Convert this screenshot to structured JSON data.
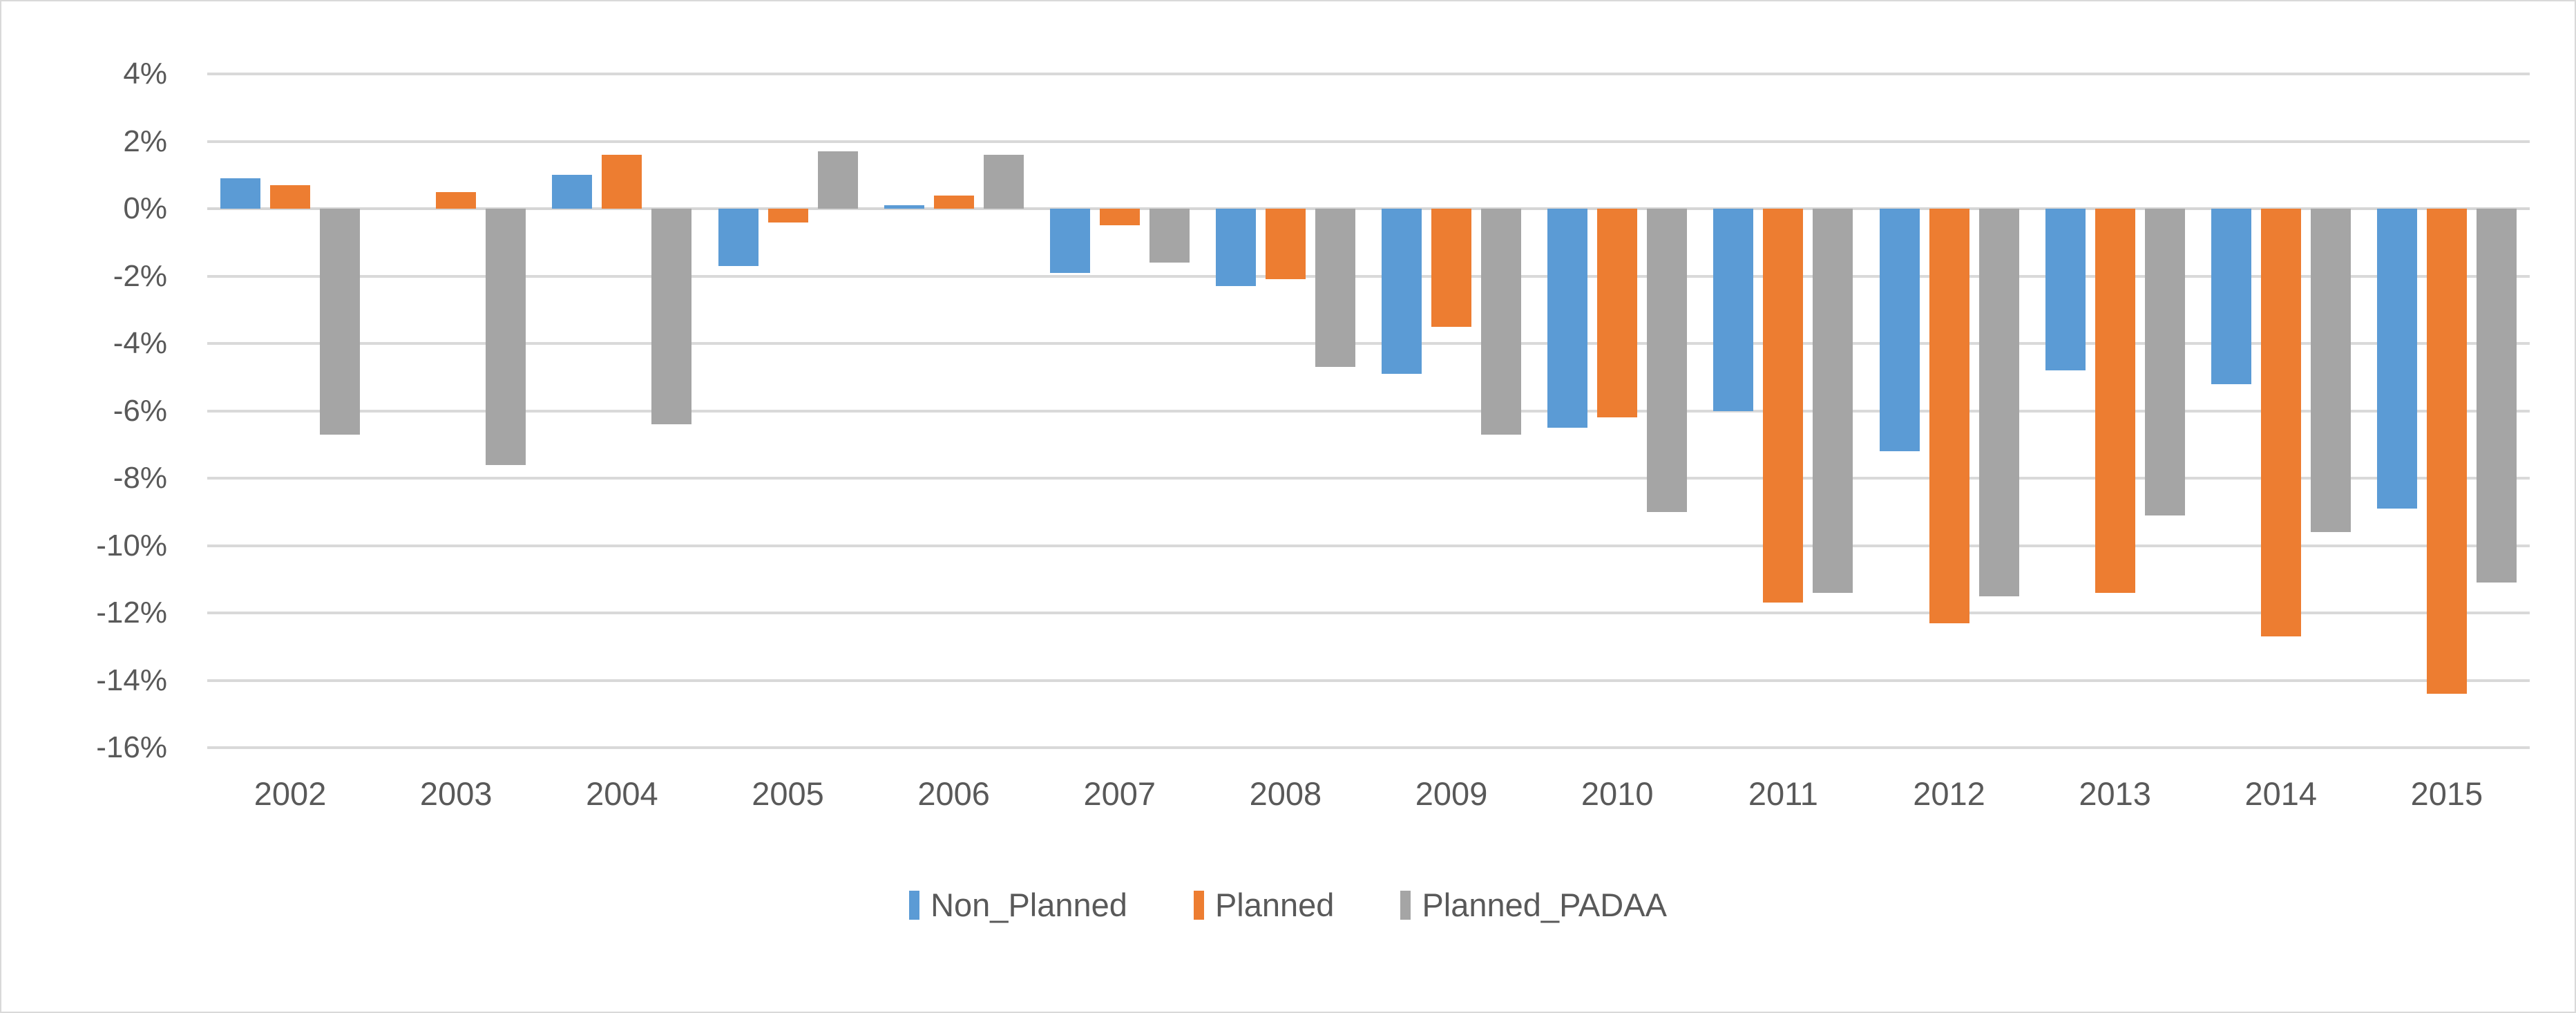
{
  "chart_data": {
    "type": "bar",
    "title": "",
    "xlabel": "",
    "ylabel": "",
    "categories": [
      "2002",
      "2003",
      "2004",
      "2005",
      "2006",
      "2007",
      "2008",
      "2009",
      "2010",
      "2011",
      "2012",
      "2013",
      "2014",
      "2015"
    ],
    "series": [
      {
        "name": "Non_Planned",
        "color": "#5b9bd5",
        "values": [
          0.9,
          0.0,
          1.0,
          -1.7,
          0.1,
          -1.9,
          -2.3,
          -4.9,
          -6.5,
          -6.0,
          -7.2,
          -4.8,
          -5.2,
          -8.9
        ]
      },
      {
        "name": "Planned",
        "color": "#ed7d31",
        "values": [
          0.7,
          0.5,
          1.6,
          -0.4,
          0.4,
          -0.5,
          -2.1,
          -3.5,
          -6.2,
          -11.7,
          -12.3,
          -11.4,
          -12.7,
          -14.4
        ]
      },
      {
        "name": "Planned_PADAA",
        "color": "#a5a5a5",
        "values": [
          -6.7,
          -7.6,
          -6.4,
          1.7,
          1.6,
          -1.6,
          -4.7,
          -6.7,
          -9.0,
          -11.4,
          -11.5,
          -9.1,
          -9.6,
          -11.1
        ]
      }
    ],
    "ylim": [
      -16,
      4
    ],
    "ytick_step": 2,
    "ytick_labels": [
      "4%",
      "2%",
      "0%",
      "-2%",
      "-4%",
      "-6%",
      "-8%",
      "-10%",
      "-12%",
      "-14%",
      "-16%"
    ],
    "ytick_format": "percent",
    "grid": true,
    "legend_position": "bottom",
    "legend_entries": [
      "Non_Planned",
      "Planned",
      "Planned_PADAA"
    ]
  },
  "style_colors": {
    "gridline": "#d9d9d9",
    "tick_text": "#595959",
    "background": "#ffffff",
    "frame_border": "#d9d9d9"
  }
}
